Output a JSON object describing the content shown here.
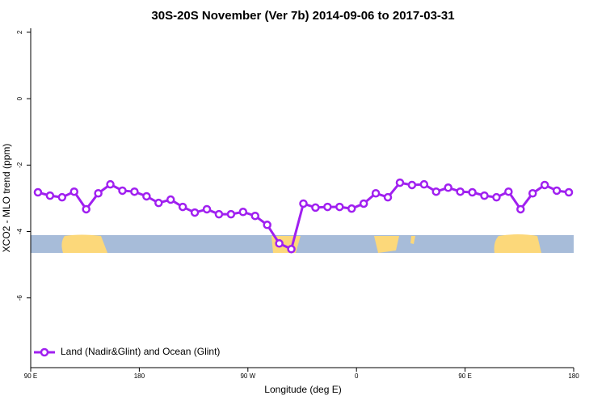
{
  "chart_data": {
    "type": "line",
    "title": "30S-20S November (Ver 7b)   2014-09-06 to 2017-03-31",
    "x_label": "Longitude (deg E)",
    "y_label": "XCO2 - MLO trend (ppm)",
    "xlim": [
      90,
      540
    ],
    "ylim": [
      -8.1,
      2.12
    ],
    "xticks": [
      {
        "value": 90,
        "label": "90 E"
      },
      {
        "value": 180,
        "label": "180"
      },
      {
        "value": 270,
        "label": "90 W"
      },
      {
        "value": 360,
        "label": "0"
      },
      {
        "value": 450,
        "label": "90 E"
      },
      {
        "value": 540,
        "label": "180"
      }
    ],
    "yticks": [
      2,
      0,
      -2,
      -4,
      -6
    ],
    "legend": "bottom-left",
    "x": [
      96,
      106,
      116,
      126,
      136,
      146,
      156,
      166,
      176,
      186,
      196,
      206,
      216,
      226,
      236,
      246,
      256,
      266,
      276,
      286,
      296,
      306,
      316,
      326,
      336,
      346,
      356,
      366,
      376,
      386,
      396,
      406,
      416,
      426,
      436,
      446,
      456,
      466,
      476,
      486,
      496,
      506,
      516,
      526,
      536
    ],
    "series": [
      {
        "name": "Land (Nadir&Glint) and Ocean (Glint)",
        "color": "#a020f0",
        "values": [
          -2.82,
          -2.92,
          -2.97,
          -2.8,
          -3.33,
          -2.85,
          -2.58,
          -2.77,
          -2.8,
          -2.94,
          -3.14,
          -3.04,
          -3.26,
          -3.43,
          -3.33,
          -3.48,
          -3.48,
          -3.41,
          -3.53,
          -3.8,
          -4.36,
          -4.53,
          -3.16,
          -3.28,
          -3.26,
          -3.26,
          -3.31,
          -3.16,
          -2.85,
          -2.97,
          -2.53,
          -2.6,
          -2.58,
          -2.8,
          -2.68,
          -2.8,
          -2.82,
          -2.92,
          -2.97,
          -2.8,
          -3.33,
          -2.85,
          -2.6,
          -2.77,
          -2.82
        ]
      }
    ]
  }
}
